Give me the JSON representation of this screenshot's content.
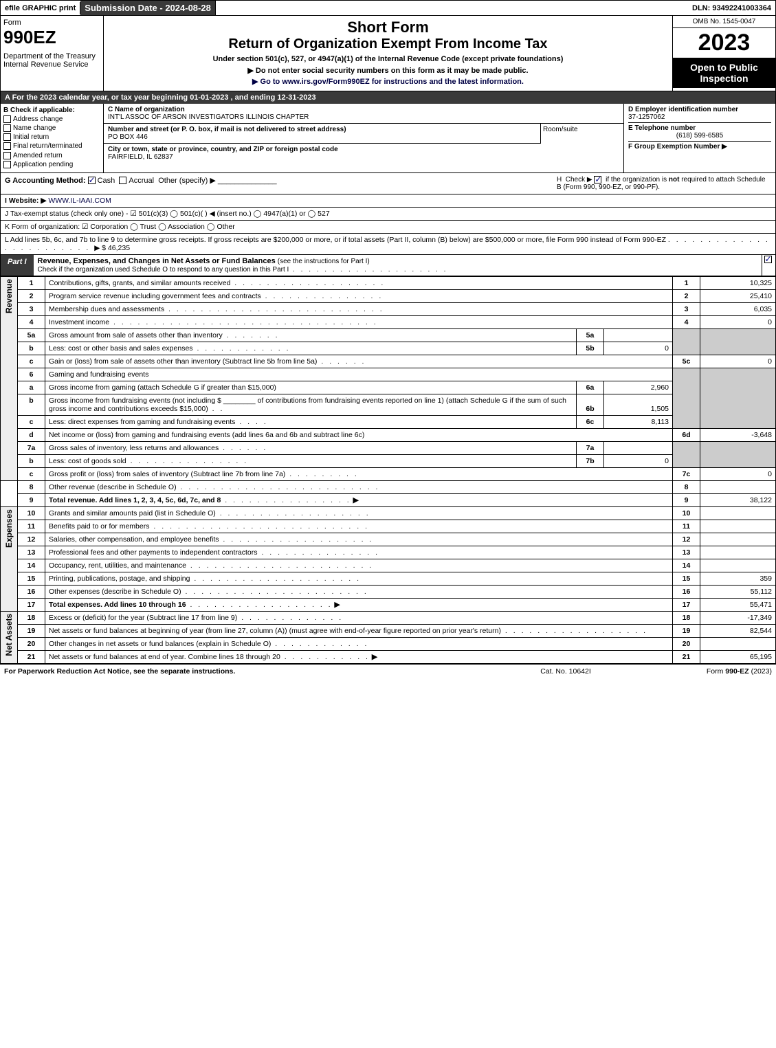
{
  "top": {
    "efile": "efile GRAPHIC print",
    "submission": "Submission Date - 2024-08-28",
    "dln": "DLN: 93492241003364"
  },
  "header": {
    "form_label": "Form",
    "form_number": "990EZ",
    "dept": "Department of the Treasury\nInternal Revenue Service",
    "short_form": "Short Form",
    "return_title": "Return of Organization Exempt From Income Tax",
    "under_section": "Under section 501(c), 527, or 4947(a)(1) of the Internal Revenue Code (except private foundations)",
    "no_ssn": "▶ Do not enter social security numbers on this form as it may be made public.",
    "goto": "▶ Go to www.irs.gov/Form990EZ for instructions and the latest information.",
    "omb": "OMB No. 1545-0047",
    "year": "2023",
    "open": "Open to Public Inspection"
  },
  "section_a": "A  For the 2023 calendar year, or tax year beginning 01-01-2023 , and ending 12-31-2023",
  "b": {
    "title": "B  Check if applicable:",
    "items": [
      "Address change",
      "Name change",
      "Initial return",
      "Final return/terminated",
      "Amended return",
      "Application pending"
    ]
  },
  "c": {
    "name_lbl": "C Name of organization",
    "name": "INT'L ASSOC OF ARSON INVESTIGATORS ILLINOIS CHAPTER",
    "street_lbl": "Number and street (or P. O. box, if mail is not delivered to street address)",
    "street": "PO BOX 446",
    "room_lbl": "Room/suite",
    "city_lbl": "City or town, state or province, country, and ZIP or foreign postal code",
    "city": "FAIRFIELD, IL  62837"
  },
  "d": {
    "ein_lbl": "D Employer identification number",
    "ein": "37-1257062",
    "tel_lbl": "E Telephone number",
    "tel": "(618) 599-6585",
    "grp_lbl": "F Group Exemption Number  ▶"
  },
  "g": {
    "label": "G Accounting Method:",
    "cash": "Cash",
    "accrual": "Accrual",
    "other": "Other (specify) ▶"
  },
  "h": {
    "text": "H  Check ▶ ☑ if the organization is not required to attach Schedule B (Form 990, 990-EZ, or 990-PF)."
  },
  "i": {
    "label": "I Website: ▶",
    "value": "WWW.IL-IAAI.COM"
  },
  "j": {
    "text": "J Tax-exempt status (check only one) - ☑ 501(c)(3)  ◯ 501(c)(  ) ◀ (insert no.)  ◯ 4947(a)(1) or  ◯ 527"
  },
  "k": {
    "text": "K Form of organization:  ☑ Corporation   ◯ Trust   ◯ Association   ◯ Other"
  },
  "l": {
    "text": "L Add lines 5b, 6c, and 7b to line 9 to determine gross receipts. If gross receipts are $200,000 or more, or if total assets (Part II, column (B) below) are $500,000 or more, file Form 990 instead of Form 990-EZ",
    "amount": "▶ $ 46,235"
  },
  "part1": {
    "tab": "Part I",
    "title": "Revenue, Expenses, and Changes in Net Assets or Fund Balances",
    "subtitle": "(see the instructions for Part I)",
    "check_line": "Check if the organization used Schedule O to respond to any question in this Part I"
  },
  "side": {
    "revenue": "Revenue",
    "expenses": "Expenses",
    "netassets": "Net Assets"
  },
  "rows": {
    "r1": {
      "n": "1",
      "t": "Contributions, gifts, grants, and similar amounts received",
      "rn": "1",
      "v": "10,325"
    },
    "r2": {
      "n": "2",
      "t": "Program service revenue including government fees and contracts",
      "rn": "2",
      "v": "25,410"
    },
    "r3": {
      "n": "3",
      "t": "Membership dues and assessments",
      "rn": "3",
      "v": "6,035"
    },
    "r4": {
      "n": "4",
      "t": "Investment income",
      "rn": "4",
      "v": "0"
    },
    "r5a": {
      "n": "5a",
      "t": "Gross amount from sale of assets other than inventory",
      "sn": "5a",
      "sv": ""
    },
    "r5b": {
      "n": "b",
      "t": "Less: cost or other basis and sales expenses",
      "sn": "5b",
      "sv": "0"
    },
    "r5c": {
      "n": "c",
      "t": "Gain or (loss) from sale of assets other than inventory (Subtract line 5b from line 5a)",
      "rn": "5c",
      "v": "0"
    },
    "r6": {
      "n": "6",
      "t": "Gaming and fundraising events"
    },
    "r6a": {
      "n": "a",
      "t": "Gross income from gaming (attach Schedule G if greater than $15,000)",
      "sn": "6a",
      "sv": "2,960"
    },
    "r6b": {
      "n": "b",
      "t1": "Gross income from fundraising events (not including $",
      "t2": "of contributions from fundraising events reported on line 1) (attach Schedule G if the sum of such gross income and contributions exceeds $15,000)",
      "sn": "6b",
      "sv": "1,505"
    },
    "r6c": {
      "n": "c",
      "t": "Less: direct expenses from gaming and fundraising events",
      "sn": "6c",
      "sv": "8,113"
    },
    "r6d": {
      "n": "d",
      "t": "Net income or (loss) from gaming and fundraising events (add lines 6a and 6b and subtract line 6c)",
      "rn": "6d",
      "v": "-3,648"
    },
    "r7a": {
      "n": "7a",
      "t": "Gross sales of inventory, less returns and allowances",
      "sn": "7a",
      "sv": ""
    },
    "r7b": {
      "n": "b",
      "t": "Less: cost of goods sold",
      "sn": "7b",
      "sv": "0"
    },
    "r7c": {
      "n": "c",
      "t": "Gross profit or (loss) from sales of inventory (Subtract line 7b from line 7a)",
      "rn": "7c",
      "v": "0"
    },
    "r8": {
      "n": "8",
      "t": "Other revenue (describe in Schedule O)",
      "rn": "8",
      "v": ""
    },
    "r9": {
      "n": "9",
      "t": "Total revenue. Add lines 1, 2, 3, 4, 5c, 6d, 7c, and 8",
      "rn": "9",
      "v": "38,122",
      "bold": true
    },
    "r10": {
      "n": "10",
      "t": "Grants and similar amounts paid (list in Schedule O)",
      "rn": "10",
      "v": ""
    },
    "r11": {
      "n": "11",
      "t": "Benefits paid to or for members",
      "rn": "11",
      "v": ""
    },
    "r12": {
      "n": "12",
      "t": "Salaries, other compensation, and employee benefits",
      "rn": "12",
      "v": ""
    },
    "r13": {
      "n": "13",
      "t": "Professional fees and other payments to independent contractors",
      "rn": "13",
      "v": ""
    },
    "r14": {
      "n": "14",
      "t": "Occupancy, rent, utilities, and maintenance",
      "rn": "14",
      "v": ""
    },
    "r15": {
      "n": "15",
      "t": "Printing, publications, postage, and shipping",
      "rn": "15",
      "v": "359"
    },
    "r16": {
      "n": "16",
      "t": "Other expenses (describe in Schedule O)",
      "rn": "16",
      "v": "55,112"
    },
    "r17": {
      "n": "17",
      "t": "Total expenses. Add lines 10 through 16",
      "rn": "17",
      "v": "55,471",
      "bold": true
    },
    "r18": {
      "n": "18",
      "t": "Excess or (deficit) for the year (Subtract line 17 from line 9)",
      "rn": "18",
      "v": "-17,349"
    },
    "r19": {
      "n": "19",
      "t": "Net assets or fund balances at beginning of year (from line 27, column (A)) (must agree with end-of-year figure reported on prior year's return)",
      "rn": "19",
      "v": "82,544"
    },
    "r20": {
      "n": "20",
      "t": "Other changes in net assets or fund balances (explain in Schedule O)",
      "rn": "20",
      "v": ""
    },
    "r21": {
      "n": "21",
      "t": "Net assets or fund balances at end of year. Combine lines 18 through 20",
      "rn": "21",
      "v": "65,195"
    }
  },
  "footer": {
    "l": "For Paperwork Reduction Act Notice, see the separate instructions.",
    "c": "Cat. No. 10642I",
    "r": "Form 990-EZ (2023)"
  }
}
